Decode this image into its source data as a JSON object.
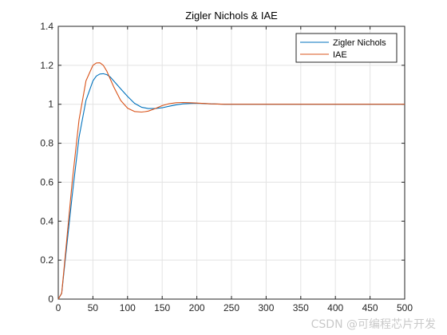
{
  "chart_data": {
    "type": "line",
    "title": "Zigler Nichols & IAE",
    "xlabel": "",
    "ylabel": "",
    "xlim": [
      0,
      500
    ],
    "ylim": [
      0,
      1.4
    ],
    "xticks": [
      0,
      50,
      100,
      150,
      200,
      250,
      300,
      350,
      400,
      450,
      500
    ],
    "yticks": [
      0,
      0.2,
      0.4,
      0.6,
      0.8,
      1,
      1.2,
      1.4
    ],
    "xtick_labels": [
      "0",
      "50",
      "100",
      "150",
      "200",
      "250",
      "300",
      "350",
      "400",
      "450",
      "500"
    ],
    "ytick_labels": [
      "0",
      "0.2",
      "0.4",
      "0.6",
      "0.8",
      "1",
      "1.2",
      "1.4"
    ],
    "grid": true,
    "legend_position": "top-right",
    "series": [
      {
        "name": "Zigler Nichols",
        "color": "#0072BD",
        "x": [
          0,
          5,
          10,
          20,
          30,
          40,
          50,
          55,
          60,
          65,
          70,
          75,
          80,
          90,
          100,
          110,
          120,
          130,
          140,
          150,
          160,
          170,
          180,
          190,
          200,
          210,
          220,
          240,
          260,
          300,
          350,
          400,
          450,
          500
        ],
        "y": [
          0,
          0.03,
          0.2,
          0.53,
          0.83,
          1.02,
          1.12,
          1.145,
          1.155,
          1.157,
          1.152,
          1.14,
          1.12,
          1.08,
          1.04,
          1.005,
          0.985,
          0.978,
          0.978,
          0.982,
          0.99,
          0.997,
          1.002,
          1.004,
          1.005,
          1.004,
          1.002,
          1.0,
          1.0,
          1.0,
          1.0,
          1.0,
          1.0,
          1.0
        ]
      },
      {
        "name": "IAE",
        "color": "#D95319",
        "x": [
          0,
          5,
          10,
          20,
          30,
          40,
          50,
          55,
          60,
          65,
          70,
          75,
          80,
          90,
          100,
          110,
          120,
          125,
          130,
          140,
          150,
          160,
          170,
          180,
          190,
          200,
          210,
          220,
          240,
          260,
          300,
          350,
          400,
          450,
          500
        ],
        "y": [
          0,
          0.03,
          0.22,
          0.6,
          0.92,
          1.12,
          1.2,
          1.212,
          1.213,
          1.2,
          1.17,
          1.13,
          1.09,
          1.02,
          0.98,
          0.963,
          0.96,
          0.962,
          0.965,
          0.978,
          0.993,
          1.003,
          1.008,
          1.009,
          1.008,
          1.006,
          1.004,
          1.002,
          1.0,
          1.0,
          1.0,
          1.0,
          1.0,
          1.0,
          1.0
        ]
      }
    ]
  },
  "watermark": "CSDN @可编程芯片开发"
}
